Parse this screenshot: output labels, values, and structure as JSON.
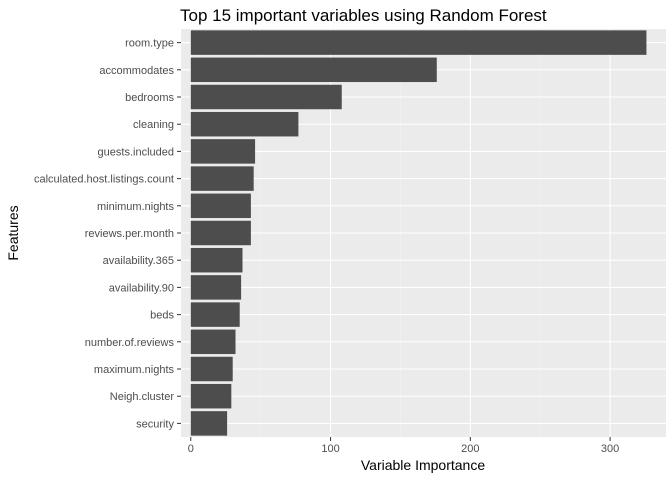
{
  "chart_data": {
    "type": "bar",
    "orientation": "horizontal",
    "title": "Top 15 important variables using Random Forest",
    "xlabel": "Variable Importance",
    "ylabel": "Features",
    "categories": [
      "room.type",
      "accommodates",
      "bedrooms",
      "cleaning",
      "guests.included",
      "calculated.host.listings.count",
      "minimum.nights",
      "reviews.per.month",
      "availability.365",
      "availability.90",
      "beds",
      "number.of.reviews",
      "maximum.nights",
      "Neigh.cluster",
      "security"
    ],
    "values": [
      326,
      176,
      108,
      77,
      46,
      45,
      43,
      43,
      37,
      36,
      35,
      32,
      30,
      29,
      26
    ],
    "xlim": [
      -7,
      340
    ],
    "xticks": [
      0,
      100,
      200,
      300
    ],
    "grid": true,
    "legend": "none",
    "colors": {
      "bar": "#4d4d4d",
      "panel": "#ebebeb",
      "grid": "#ffffff"
    }
  }
}
